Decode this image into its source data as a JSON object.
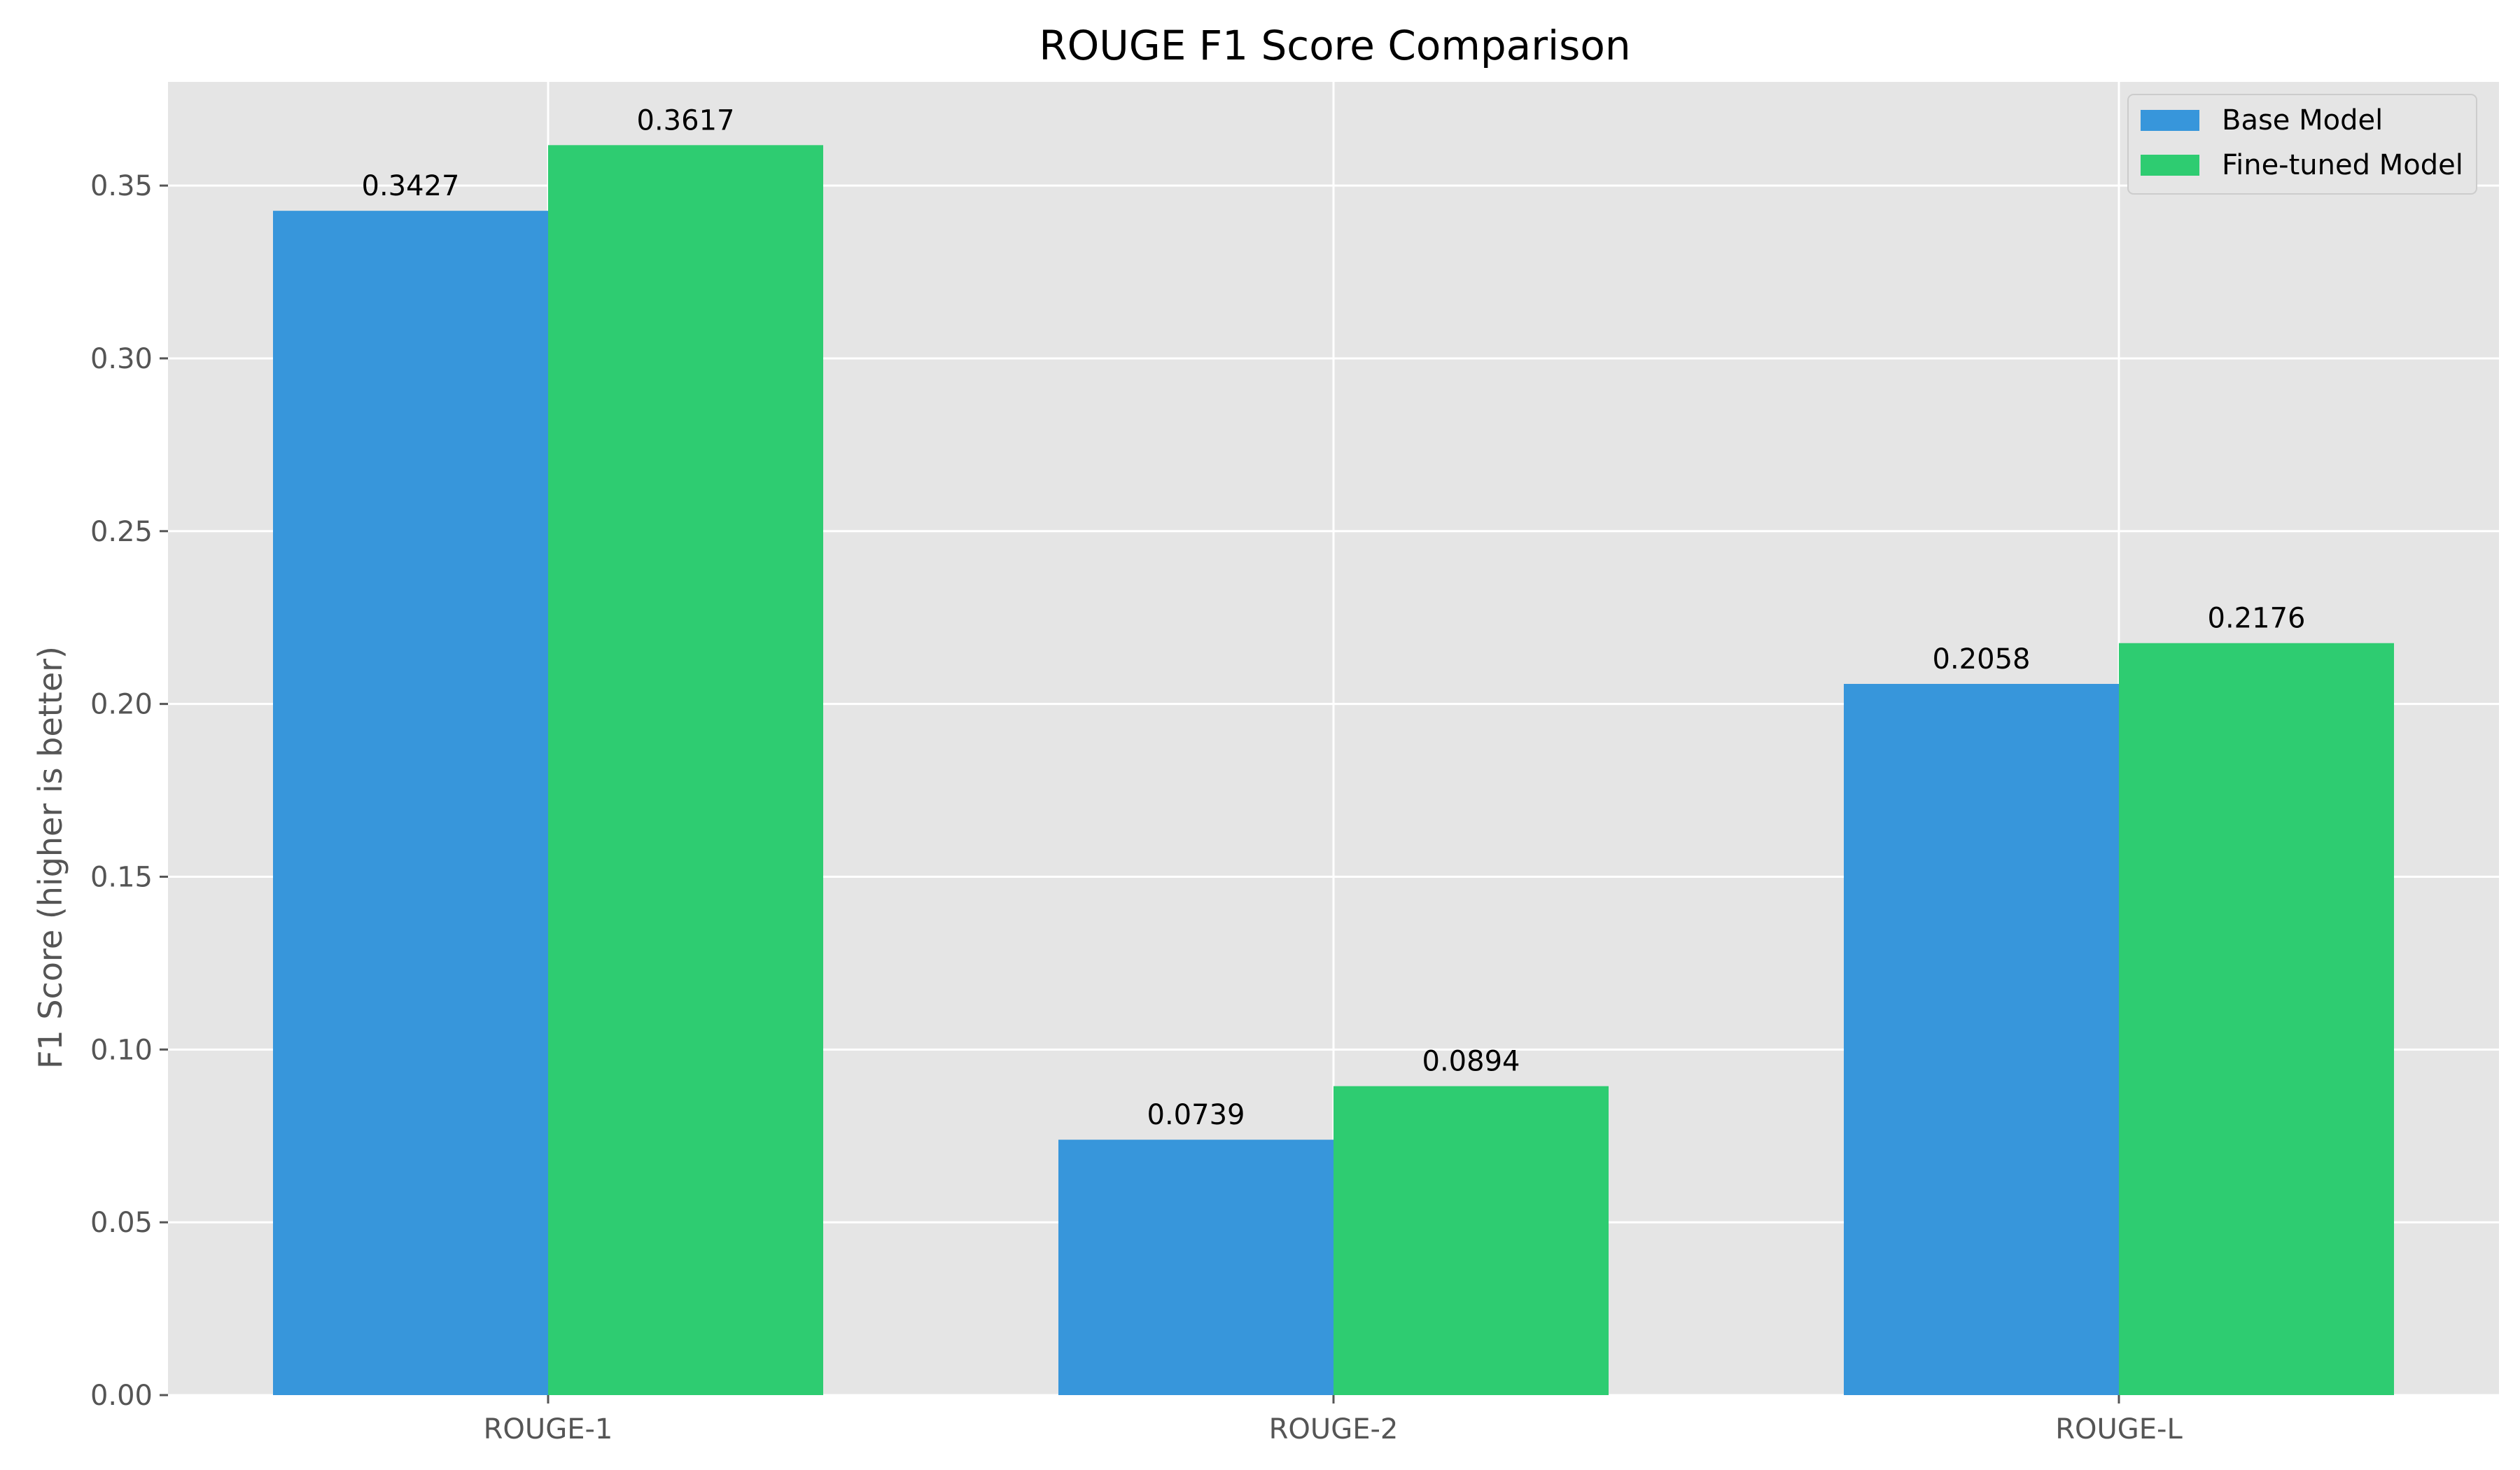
{
  "chart_data": {
    "type": "bar",
    "title": "ROUGE F1 Score Comparison",
    "xlabel": "",
    "ylabel": "F1 Score (higher is better)",
    "categories": [
      "ROUGE-1",
      "ROUGE-2",
      "ROUGE-L"
    ],
    "series": [
      {
        "name": "Base Model",
        "color": "#3796db",
        "values": [
          0.3427,
          0.0739,
          0.2058
        ],
        "labels": [
          "0.3427",
          "0.0739",
          "0.2058"
        ]
      },
      {
        "name": "Fine-tuned Model",
        "color": "#2ecc71",
        "values": [
          0.3617,
          0.0894,
          0.2176
        ],
        "labels": [
          "0.3617",
          "0.0894",
          "0.2176"
        ]
      }
    ],
    "ylim": [
      0,
      0.38
    ],
    "yticks": [
      0.0,
      0.05,
      0.1,
      0.15,
      0.2,
      0.25,
      0.3,
      0.35
    ],
    "ytick_labels": [
      "0.00",
      "0.05",
      "0.10",
      "0.15",
      "0.20",
      "0.25",
      "0.30",
      "0.35"
    ],
    "grid": true,
    "legend_position": "top-right",
    "background_color": "#e5e5e5",
    "grid_color": "#ffffff"
  }
}
